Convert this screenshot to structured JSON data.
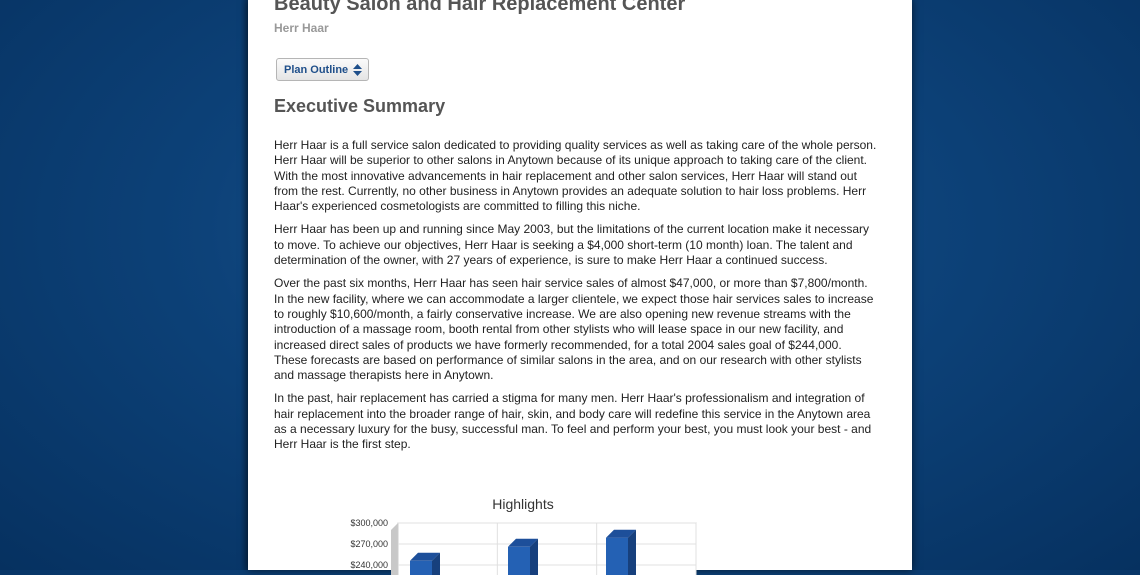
{
  "header": {
    "title": "Beauty Salon and Hair Replacement Center",
    "subtitle": "Herr Haar"
  },
  "plan_outline_button": {
    "label": "Plan Outline",
    "icon": "up-down-arrows-icon"
  },
  "section": {
    "title": "Executive Summary",
    "paragraphs": [
      "Herr Haar is a full service salon dedicated to providing quality services as well as taking care of the whole person.  Herr Haar will be superior to other salons in Anytown because of its unique approach to taking care of the client. With the most innovative advancements in hair replacement and other salon services, Herr Haar will stand out from the rest. Currently, no other business in Anytown provides an adequate solution to hair loss problems. Herr Haar's experienced cosmetologists are committed to filling this niche.",
      "Herr Haar has been up and running since May 2003, but the limitations of the current location make it necessary to move. To achieve our objectives, Herr Haar is seeking a $4,000 short-term (10 month) loan.  The talent and determination of the owner, with 27 years of experience, is sure to make Herr Haar a continued success.",
      "Over the past six months, Herr Haar has seen hair service sales of almost $47,000, or more than $7,800/month. In the new facility, where we can accommodate a larger clientele, we expect those hair services sales to increase to roughly $10,600/month, a fairly conservative increase. We are also opening new revenue streams with the introduction of a massage room, booth rental from other stylists who will lease space in our new facility, and increased direct sales of products we have formerly recommended, for a total 2004 sales goal of $244,000. These forecasts are based on performance of similar salons in the area, and on our research with other stylists and massage therapists here in Anytown.",
      "In the past, hair replacement has carried a stigma for many men. Herr Haar's professionalism and integration of hair replacement into the broader range of hair, skin, and body care will redefine this service in the Anytown area as a necessary luxury for the busy, successful man. To feel and perform your best, you must look your best - and Herr Haar is the first step."
    ]
  },
  "chart_data": {
    "type": "bar",
    "title": "Highlights",
    "three_d": true,
    "ytick_labels": [
      "$300,000",
      "$270,000",
      "$240,000"
    ],
    "ylim_visible": [
      240000,
      300000
    ],
    "values": [
      246000,
      266000,
      279000
    ],
    "bar_color": "#2461b4",
    "grid": true
  }
}
